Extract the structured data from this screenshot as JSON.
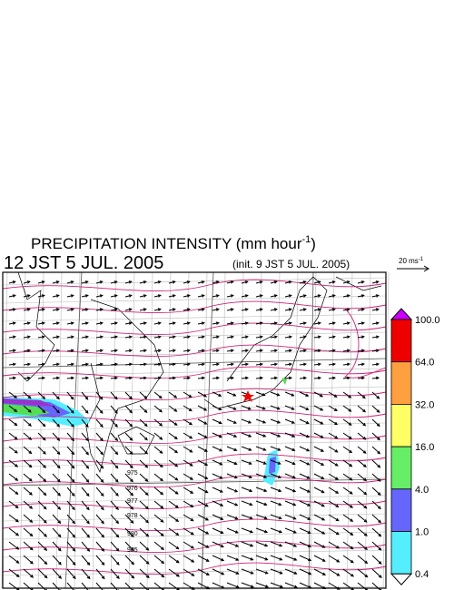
{
  "header": {
    "title": "PRECIPITATION INTENSITY (mm hour",
    "title_superscript": "-1",
    "title_close": ")",
    "valid_time": "12 JST 5 JUL. 2005",
    "init_time": "(init. 9 JST 5 JUL. 2005)"
  },
  "wind_scale": {
    "label": "20 ms",
    "superscript": "-1"
  },
  "colorbar": {
    "labels": [
      "100.0",
      "64.0",
      "32.0",
      "16.0",
      "4.0",
      "1.0",
      "0.4"
    ]
  },
  "isobars": {
    "labels": [
      "975",
      "976",
      "977",
      "978",
      "980",
      "985"
    ]
  }
}
